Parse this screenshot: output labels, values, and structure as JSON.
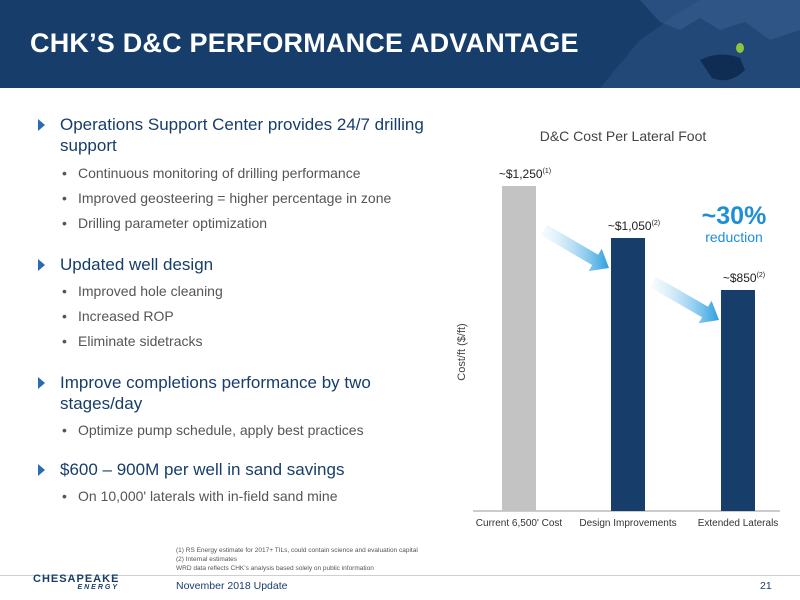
{
  "header": {
    "title": "CHK’S D&C PERFORMANCE ADVANTAGE"
  },
  "bullets": [
    {
      "label": "Operations Support Center provides 24/7 drilling support",
      "subs": [
        "Continuous monitoring of drilling performance",
        "Improved geosteering = higher percentage in zone",
        "Drilling parameter optimization"
      ]
    },
    {
      "label": "Updated well design",
      "subs": [
        "Improved hole cleaning",
        "Increased ROP",
        "Eliminate sidetracks"
      ]
    },
    {
      "label": "Improve completions performance by two stages/day",
      "subs": [
        "Optimize pump schedule, apply best practices"
      ]
    },
    {
      "label": "$600 – 900M per well in sand savings",
      "subs": [
        "On 10,000' laterals with in-field sand mine"
      ]
    }
  ],
  "chart_data": {
    "type": "bar",
    "title": "D&C Cost Per Lateral Foot",
    "ylabel": "Cost/ft ($/ft)",
    "xlabel": "",
    "categories": [
      "Current 6,500' Cost",
      "Design Improvements",
      "Extended Laterals"
    ],
    "values": [
      1250,
      1050,
      850
    ],
    "data_labels": [
      "~$1,250",
      "~$1,050",
      "~$850"
    ],
    "label_notes": [
      "(1)",
      "(2)",
      "(2)"
    ],
    "ylim": [
      0,
      1300
    ],
    "grid": false,
    "bar_colors": [
      "#c3c3c3",
      "#173d6b",
      "#173d6b"
    ],
    "annotation": {
      "value": "~30%",
      "text": "reduction",
      "color": "#1d8fd6"
    }
  },
  "footnotes": [
    "(1)  RS Energy estimate for 2017+ TILs, could contain science and evaluation capital",
    "(2)  Internal estimates",
    "WRD data reflects CHK’s analysis based solely on public information"
  ],
  "footer": {
    "logo_top": "CHESAPEAKE",
    "logo_bottom": "ENERGY",
    "text": "November 2018 Update",
    "page": "21"
  },
  "colors": {
    "navy": "#173d6b",
    "accent": "#1d8fd6",
    "bullet_arrow": "#2a6cb2"
  }
}
